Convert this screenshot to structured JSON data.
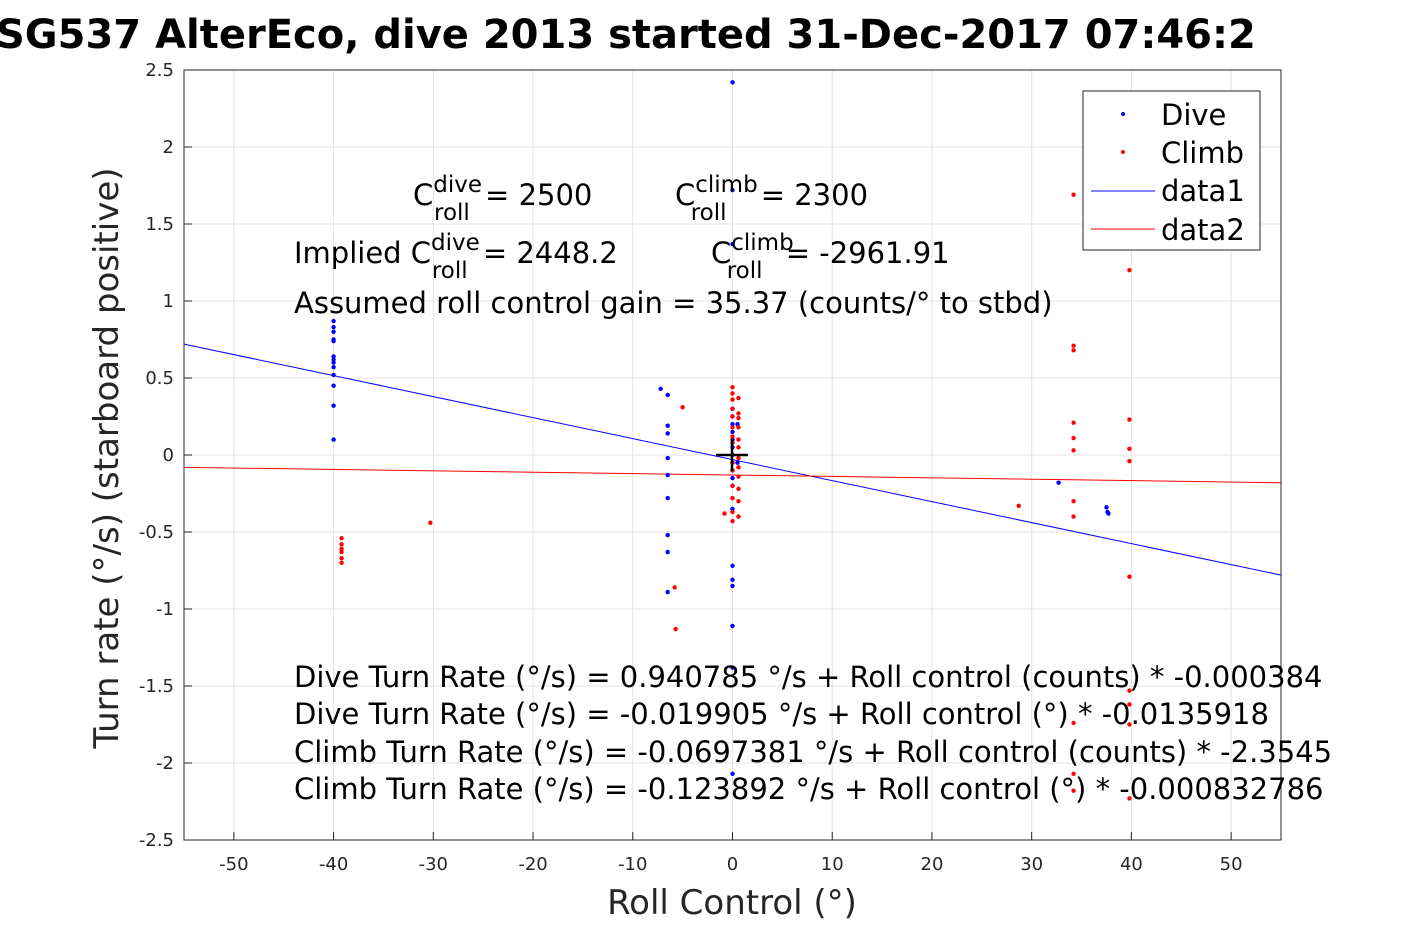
{
  "chart_data": {
    "type": "scatter",
    "title": "SG537 AlterEco, dive 2013 started 31-Dec-2017 07:46:2",
    "xlabel": "Roll Control (°)",
    "ylabel": "Turn rate (°/s) (starboard positive)",
    "xlim": [
      -55,
      55
    ],
    "ylim": [
      -2.5,
      2.5
    ],
    "grid": true,
    "xticks": [
      -50,
      -40,
      -30,
      -20,
      -10,
      0,
      10,
      20,
      30,
      40,
      50
    ],
    "yticks": [
      2.5,
      2,
      1.5,
      1,
      0.5,
      0,
      -0.5,
      -1,
      -1.5,
      -2,
      -2.5
    ],
    "xtick_labels": [
      "-50",
      "-40",
      "-30",
      "-20",
      "-10",
      "0",
      "10",
      "20",
      "30",
      "40",
      "50"
    ],
    "ytick_labels": [
      "2.5",
      "2",
      "1.5",
      "1",
      "0.5",
      "0",
      "-0.5",
      "-1",
      "-1.5",
      "-2",
      "-2.5"
    ],
    "legend": {
      "placement": "top-right",
      "entries": [
        "Dive",
        "Climb",
        "data1",
        "data2"
      ]
    },
    "series": [
      {
        "name": "Dive",
        "kind": "points",
        "color": "#0000ff",
        "points": [
          [
            -40,
            0.87
          ],
          [
            -40,
            0.83
          ],
          [
            -40,
            0.8
          ],
          [
            -40,
            0.75
          ],
          [
            -40,
            0.74
          ],
          [
            -40,
            0.64
          ],
          [
            -40,
            0.62
          ],
          [
            -40,
            0.6
          ],
          [
            -40,
            0.57
          ],
          [
            -40,
            0.52
          ],
          [
            -40,
            0.45
          ],
          [
            -40,
            0.32
          ],
          [
            -40,
            0.1
          ],
          [
            -7.2,
            0.43
          ],
          [
            -6.5,
            0.39
          ],
          [
            -6.5,
            0.19
          ],
          [
            -6.5,
            0.14
          ],
          [
            -6.5,
            -0.02
          ],
          [
            -6.5,
            -0.13
          ],
          [
            -6.5,
            -0.28
          ],
          [
            -6.5,
            -0.52
          ],
          [
            -6.5,
            -0.63
          ],
          [
            -6.5,
            -0.89
          ],
          [
            0,
            2.42
          ],
          [
            0,
            1.72
          ],
          [
            0,
            1.37
          ],
          [
            0,
            0.3
          ],
          [
            0,
            0.25
          ],
          [
            0,
            0.2
          ],
          [
            0,
            0.15
          ],
          [
            0,
            0.1
          ],
          [
            0,
            0.05
          ],
          [
            0,
            0.0
          ],
          [
            0,
            -0.05
          ],
          [
            0,
            -0.1
          ],
          [
            0,
            -0.15
          ],
          [
            0,
            -0.2
          ],
          [
            0,
            -0.35
          ],
          [
            0,
            -0.72
          ],
          [
            0,
            -0.81
          ],
          [
            0,
            -0.85
          ],
          [
            0,
            -1.11
          ],
          [
            0,
            -1.38
          ],
          [
            0,
            -2.07
          ],
          [
            0.5,
            0.2
          ],
          [
            0.5,
            -0.05
          ],
          [
            32.7,
            -0.18
          ],
          [
            37.5,
            -0.34
          ],
          [
            37.6,
            -0.37
          ],
          [
            37.7,
            -0.38
          ]
        ]
      },
      {
        "name": "Climb",
        "kind": "points",
        "color": "#ff0000",
        "points": [
          [
            -39.2,
            -0.54
          ],
          [
            -39.2,
            -0.58
          ],
          [
            -39.2,
            -0.61
          ],
          [
            -39.2,
            -0.63
          ],
          [
            -39.2,
            -0.67
          ],
          [
            -39.2,
            -0.7
          ],
          [
            -30.3,
            -0.44
          ],
          [
            -5,
            0.31
          ],
          [
            -5.8,
            -0.86
          ],
          [
            -5.7,
            -1.13
          ],
          [
            -0.8,
            -0.38
          ],
          [
            0,
            0.44
          ],
          [
            0,
            0.4
          ],
          [
            0,
            0.36
          ],
          [
            0,
            0.3
          ],
          [
            0,
            0.25
          ],
          [
            0,
            0.18
          ],
          [
            0,
            0.12
          ],
          [
            0,
            0.08
          ],
          [
            0,
            -0.05
          ],
          [
            0,
            -0.1
          ],
          [
            0,
            -0.2
          ],
          [
            0,
            -0.28
          ],
          [
            0,
            -0.37
          ],
          [
            0,
            -0.43
          ],
          [
            0.6,
            0.37
          ],
          [
            0.6,
            0.27
          ],
          [
            0.6,
            0.24
          ],
          [
            0.6,
            0.18
          ],
          [
            0.6,
            0.1
          ],
          [
            0.6,
            0.05
          ],
          [
            0.6,
            -0.02
          ],
          [
            0.6,
            -0.08
          ],
          [
            0.6,
            -0.14
          ],
          [
            0.6,
            -0.22
          ],
          [
            0.6,
            -0.3
          ],
          [
            0.6,
            -0.4
          ],
          [
            28.7,
            -0.33
          ],
          [
            34.2,
            1.69
          ],
          [
            34.2,
            0.71
          ],
          [
            34.2,
            0.68
          ],
          [
            34.2,
            0.21
          ],
          [
            34.2,
            0.11
          ],
          [
            34.2,
            0.03
          ],
          [
            34.2,
            -0.3
          ],
          [
            34.2,
            -0.4
          ],
          [
            34.2,
            -1.74
          ],
          [
            34.2,
            -2.07
          ],
          [
            34.2,
            -2.18
          ],
          [
            39.8,
            1.2
          ],
          [
            39.8,
            0.23
          ],
          [
            39.8,
            0.04
          ],
          [
            39.8,
            -0.04
          ],
          [
            39.8,
            -0.79
          ],
          [
            39.8,
            -1.53
          ],
          [
            39.8,
            -1.62
          ],
          [
            39.8,
            -1.75
          ],
          [
            39.8,
            -2.23
          ]
        ]
      },
      {
        "name": "data1",
        "kind": "line",
        "color": "#0000ff",
        "points": [
          [
            -55,
            0.72
          ],
          [
            55,
            -0.78
          ]
        ]
      },
      {
        "name": "data2",
        "kind": "line",
        "color": "#ff0000",
        "points": [
          [
            -55,
            -0.08
          ],
          [
            55,
            -0.18
          ]
        ]
      }
    ],
    "marker_origin": [
      0,
      0
    ],
    "annotations": {
      "c_dive": {
        "base": "C",
        "sup": "dive",
        "sub": "roll",
        "rest": " = 2500"
      },
      "c_climb": {
        "base": "C",
        "sup": "climb",
        "sub": "roll",
        "rest": " = 2300"
      },
      "implied_prefix": "Implied ",
      "implied_dive": {
        "base": "C",
        "sup": "dive",
        "sub": "roll",
        "rest": " = 2448.2"
      },
      "implied_climb": {
        "base": "C",
        "sup": "climb",
        "sub": "roll",
        "rest": " = -2961.91"
      },
      "gain": "Assumed roll control gain = 35.37 (counts/° to stbd)",
      "eq1": "Dive Turn Rate (°/s) = 0.940785 °/s + Roll control (counts) * -0.000384",
      "eq2": "Dive Turn Rate (°/s) = -0.019905 °/s + Roll control (°) * -0.0135918",
      "eq3": "Climb Turn Rate (°/s) = -0.0697381 °/s + Roll control (counts) * -2.3545",
      "eq4": "Climb Turn Rate (°/s) = -0.123892 °/s + Roll control (°) * -0.000832786"
    }
  }
}
